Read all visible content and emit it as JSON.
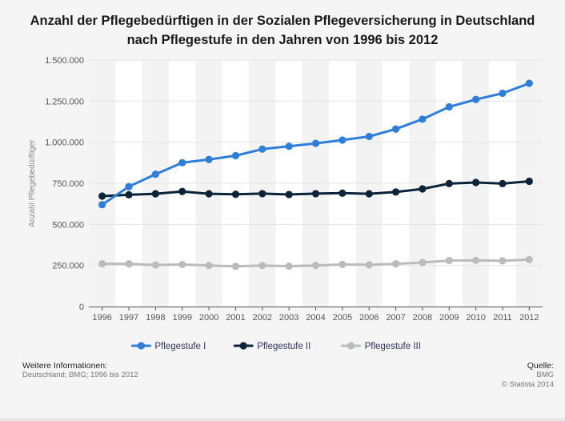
{
  "chart_data": {
    "type": "line",
    "title_line1": "Anzahl der Pflegebedürftigen in der Sozialen Pflegeversicherung in Deutschland",
    "title_line2": "nach Pflegestufe in den Jahren von 1996 bis 2012",
    "ylabel": "Anzahl Pflegebedürftiger",
    "xlabel": "",
    "x": [
      "1996",
      "1997",
      "1998",
      "1999",
      "2000",
      "2001",
      "2002",
      "2003",
      "2004",
      "2005",
      "2006",
      "2007",
      "2008",
      "2009",
      "2010",
      "2011",
      "2012"
    ],
    "ylim": [
      0,
      1500000
    ],
    "yticks": [
      0,
      250000,
      500000,
      750000,
      1000000,
      1250000,
      1500000
    ],
    "ytick_labels": [
      "0",
      "250.000",
      "500.000",
      "750.000",
      "1.000.000",
      "1.250.000",
      "1.500.000"
    ],
    "legend_position": "bottom-center",
    "series": [
      {
        "name": "Pflegestufe I",
        "color": "#2f7ed8",
        "values": [
          620000,
          730000,
          805000,
          875000,
          895000,
          918000,
          958000,
          975000,
          993000,
          1013000,
          1035000,
          1080000,
          1140000,
          1215000,
          1260000,
          1298000,
          1358000
        ]
      },
      {
        "name": "Pflegestufe II",
        "color": "#0d233a",
        "values": [
          672000,
          680000,
          686000,
          700000,
          686000,
          683000,
          687000,
          682000,
          687000,
          690000,
          686000,
          697000,
          716000,
          748000,
          755000,
          748000,
          762000
        ]
      },
      {
        "name": "Pflegestufe III",
        "color": "#bbbbbb",
        "values": [
          260000,
          260000,
          253000,
          256000,
          250000,
          245000,
          250000,
          246000,
          250000,
          256000,
          254000,
          260000,
          268000,
          280000,
          281000,
          278000,
          286000
        ]
      }
    ]
  },
  "footer": {
    "info_heading": "Weitere Informationen:",
    "info_text": "Deutschland; BMG; 1996 bis 2012",
    "source_heading": "Quelle:",
    "source_name": "BMG",
    "copyright": "© Statista 2014"
  },
  "colors": {
    "background": "#f5f5f5",
    "band_light": "#ffffff",
    "band_dark": "#f3f3f3",
    "grid": "#e4e4e4",
    "axis": "#555555",
    "tick_text": "#555555",
    "legend_text": "#333366"
  }
}
